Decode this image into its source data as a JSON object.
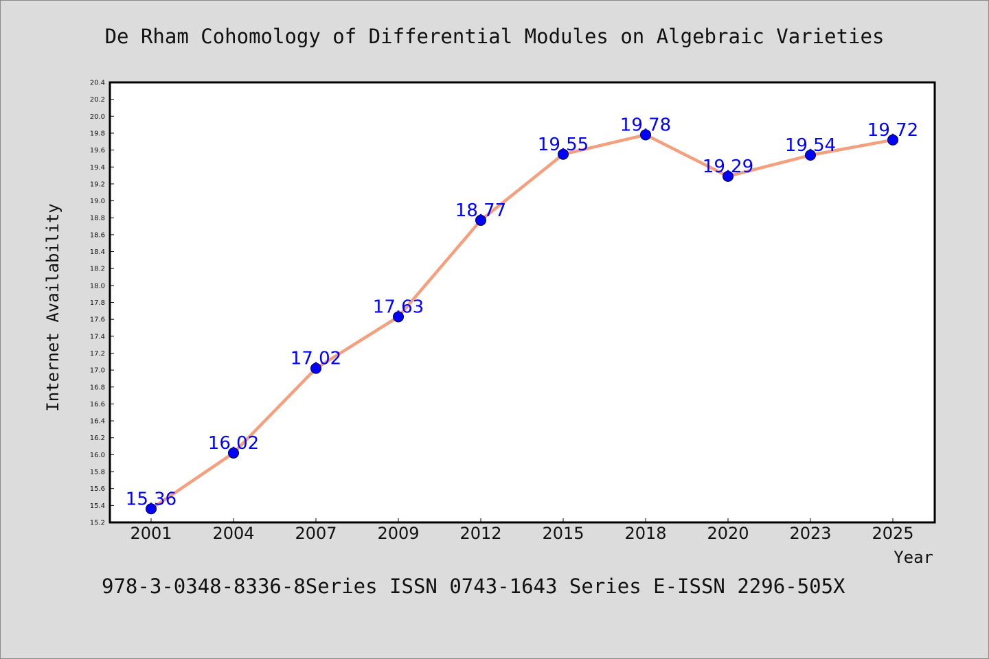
{
  "colors": {
    "background": "#dcdcdc",
    "plot_background": "#ffffff",
    "line": "#f4a07e",
    "marker_fill": "#0000ff",
    "marker_edge": "#000033",
    "data_label": "#0000ff"
  },
  "footer": {
    "text": "978-3-0348-8336-8Series ISSN 0743-1643 Series E-ISSN 2296-505X"
  },
  "chart_data": {
    "type": "line",
    "title": "De Rham Cohomology of Differential Modules on Algebraic Varieties",
    "xlabel": "Year",
    "ylabel": "Internet Availability",
    "categories": [
      "2001",
      "2004",
      "2007",
      "2009",
      "2012",
      "2015",
      "2018",
      "2020",
      "2023",
      "2025"
    ],
    "series": [
      {
        "values": [
          15.36,
          16.02,
          17.02,
          17.63,
          18.77,
          19.55,
          19.78,
          19.29,
          19.54,
          19.72
        ],
        "labels": [
          "15.36",
          "16.02",
          "17.02",
          "17.63",
          "18.77",
          "19.55",
          "19.78",
          "19.29",
          "19.54",
          "19.72"
        ]
      }
    ],
    "ylim": [
      15.2,
      20.4
    ],
    "ytick_step": 0.2,
    "yticks": [
      "15.2",
      "15.4",
      "15.6",
      "15.8",
      "16.0",
      "16.2",
      "16.4",
      "16.6",
      "16.8",
      "17.0",
      "17.2",
      "17.4",
      "17.6",
      "17.8",
      "18.0",
      "18.2",
      "18.4",
      "18.6",
      "18.8",
      "19.0",
      "19.2",
      "19.4",
      "19.6",
      "19.8",
      "20.0",
      "20.2",
      "20.4"
    ],
    "grid": false,
    "legend": "none"
  }
}
